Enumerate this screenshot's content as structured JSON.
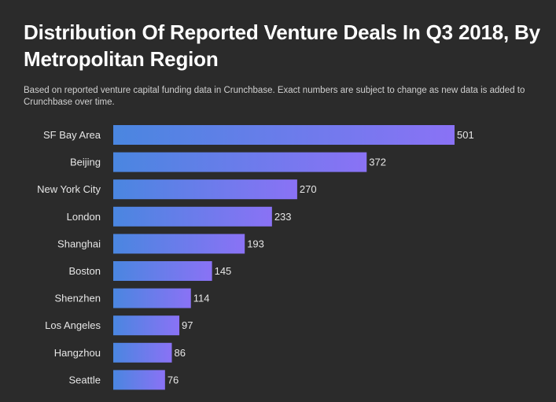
{
  "chart_data": {
    "type": "bar",
    "orientation": "horizontal",
    "title": "Distribution Of Reported Venture Deals In Q3 2018, By Metropolitan Region",
    "subtitle": "Based on reported venture capital funding data in Crunchbase. Exact numbers are subject to change as new data is added to Crunchbase over time.",
    "xlabel": "",
    "ylabel": "",
    "categories": [
      "SF Bay Area",
      "Beijing",
      "New York City",
      "London",
      "Shanghai",
      "Boston",
      "Shenzhen",
      "Los Angeles",
      "Hangzhou",
      "Seattle"
    ],
    "values": [
      501,
      372,
      270,
      233,
      193,
      145,
      114,
      97,
      86,
      76
    ],
    "xlim": [
      0,
      501
    ],
    "grid": false,
    "legend": "none",
    "colors": {
      "background": "#2b2b2b",
      "bar_start": "#4a86e0",
      "bar_end": "#8a72f5",
      "text": "#ffffff",
      "subtext": "#d0d0d0"
    }
  }
}
